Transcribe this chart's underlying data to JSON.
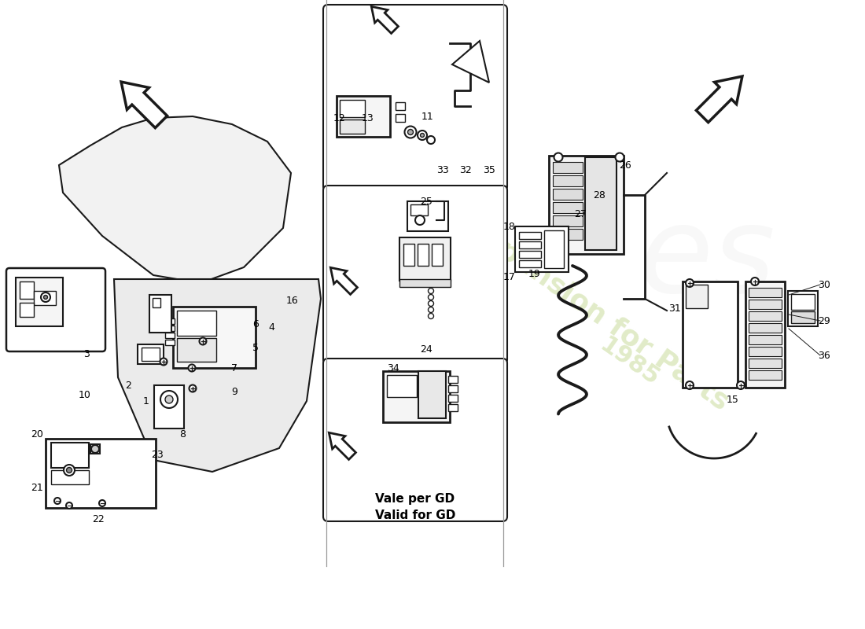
{
  "background_color": "#ffffff",
  "line_color": "#1a1a1a",
  "watermark_color": "#c8db9a",
  "note_line1": "Vale per GD",
  "note_line2": "Valid for GD",
  "fig_width": 11.0,
  "fig_height": 8.0,
  "dpi": 100
}
